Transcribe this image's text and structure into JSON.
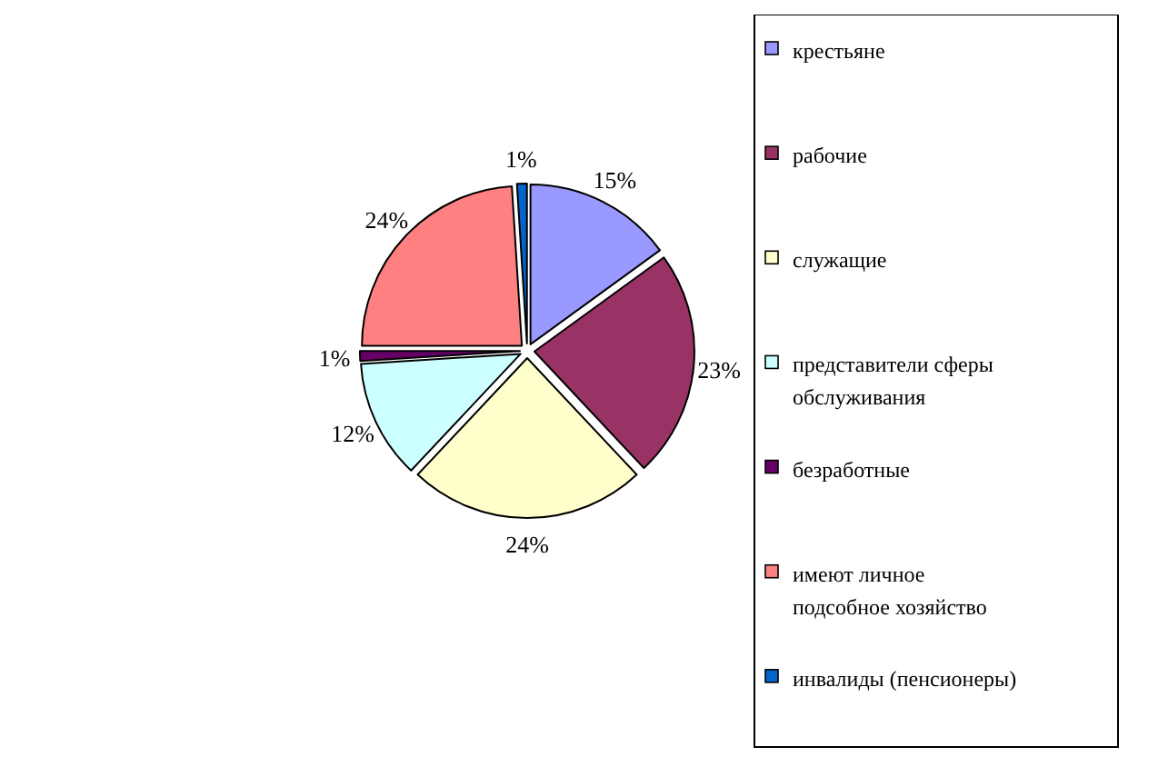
{
  "chart_data": {
    "type": "pie",
    "categories": [
      "крестьяне",
      "рабочие",
      "служащие",
      "представители сферы обслуживания",
      "безработные",
      "имеют личное подсобное хозяйство",
      "инвалиды (пенсионеры)"
    ],
    "values": [
      15,
      23,
      24,
      12,
      1,
      24,
      1
    ],
    "value_labels": [
      "15%",
      "23%",
      "24%",
      "12%",
      "1%",
      "24%",
      "1%"
    ],
    "colors": [
      "#9999ff",
      "#993366",
      "#ffffcc",
      "#ccffff",
      "#660066",
      "#ff8080",
      "#0066cc"
    ],
    "legend": "right"
  }
}
